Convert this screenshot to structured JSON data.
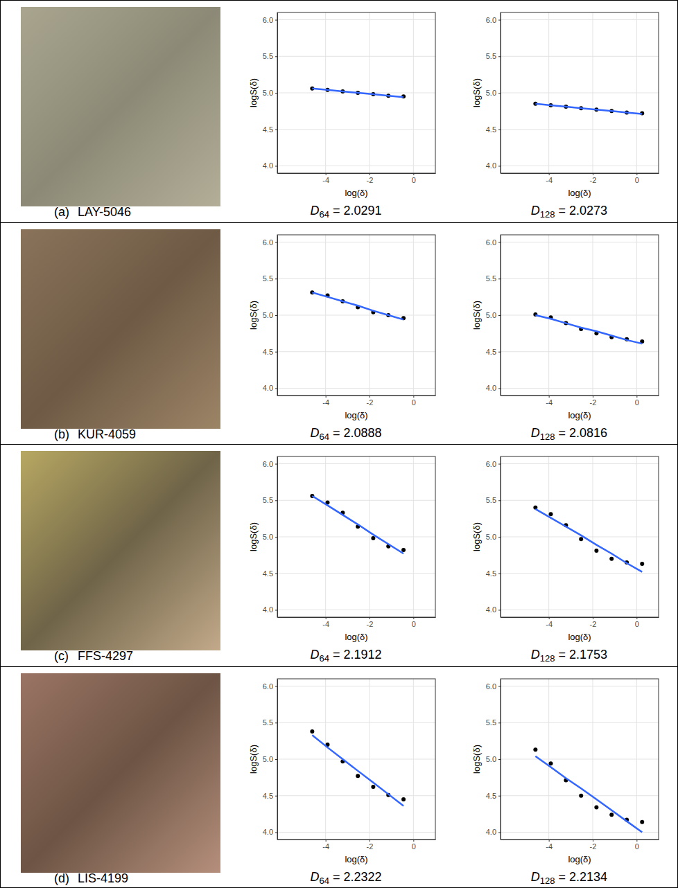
{
  "panels": [
    {
      "letter": "(a)",
      "site": "LAY-5046"
    },
    {
      "letter": "(b)",
      "site": "KUR-4059"
    },
    {
      "letter": "(c)",
      "site": "FFS-4297"
    },
    {
      "letter": "(d)",
      "site": "LIS-4199"
    }
  ],
  "chart_data": [
    {
      "type": "scatter",
      "x": [
        -4.61,
        -3.91,
        -3.22,
        -2.53,
        -1.83,
        -1.14,
        -0.45
      ],
      "series": [
        {
          "type": "scatter",
          "marker": "circle",
          "color": "#000000",
          "values": [
            5.06,
            5.04,
            5.02,
            5.0,
            4.98,
            4.96,
            4.95
          ]
        },
        {
          "type": "line",
          "line_style": "solid",
          "color": "#3366ff",
          "values": [
            5.06,
            5.04,
            5.02,
            5.0,
            4.98,
            4.96,
            4.94
          ]
        }
      ],
      "xlabel": "log(δ)",
      "ylabel": "logS(δ)",
      "xlim": [
        -6.2,
        1.0
      ],
      "ylim": [
        3.9,
        6.1
      ],
      "xticks": [
        -4,
        -2,
        0
      ],
      "yticks": [
        {
          "value": 4,
          "label": "4.0"
        },
        4.5,
        {
          "value": 5,
          "label": "5.0"
        },
        5.5,
        {
          "value": 6,
          "label": "6.0"
        }
      ],
      "grid": true,
      "annotation": {
        "symbol": "D",
        "subscript": "64",
        "text": "= 2.0291"
      }
    },
    {
      "type": "scatter",
      "x": [
        -4.61,
        -3.91,
        -3.22,
        -2.53,
        -1.83,
        -1.14,
        -0.45,
        0.25
      ],
      "series": [
        {
          "type": "scatter",
          "marker": "circle",
          "color": "#000000",
          "values": [
            4.85,
            4.83,
            4.81,
            4.79,
            4.77,
            4.75,
            4.73,
            4.72
          ]
        },
        {
          "type": "line",
          "line_style": "solid",
          "color": "#3366ff",
          "values": [
            4.85,
            4.83,
            4.81,
            4.79,
            4.77,
            4.75,
            4.73,
            4.71
          ]
        }
      ],
      "xlabel": "log(δ)",
      "ylabel": "logS(δ)",
      "xlim": [
        -6.2,
        1.0
      ],
      "ylim": [
        3.9,
        6.1
      ],
      "xticks": [
        -4,
        -2,
        0
      ],
      "yticks": [
        {
          "value": 4,
          "label": "4.0"
        },
        4.5,
        {
          "value": 5,
          "label": "5.0"
        },
        5.5,
        {
          "value": 6,
          "label": "6.0"
        }
      ],
      "grid": true,
      "annotation": {
        "symbol": "D",
        "subscript": "128",
        "text": "= 2.0273"
      }
    },
    {
      "type": "scatter",
      "x": [
        -4.61,
        -3.91,
        -3.22,
        -2.53,
        -1.83,
        -1.14,
        -0.45
      ],
      "series": [
        {
          "type": "scatter",
          "marker": "circle",
          "color": "#000000",
          "values": [
            5.31,
            5.27,
            5.19,
            5.11,
            5.04,
            5.0,
            4.96
          ]
        },
        {
          "type": "line",
          "line_style": "solid",
          "color": "#3366ff",
          "values": [
            5.31,
            5.25,
            5.19,
            5.13,
            5.06,
            5.0,
            4.94
          ]
        }
      ],
      "xlabel": "log(δ)",
      "ylabel": "logS(δ)",
      "xlim": [
        -6.2,
        1.0
      ],
      "ylim": [
        3.9,
        6.1
      ],
      "xticks": [
        -4,
        -2,
        0
      ],
      "yticks": [
        {
          "value": 4,
          "label": "4.0"
        },
        4.5,
        {
          "value": 5,
          "label": "5.0"
        },
        5.5,
        {
          "value": 6,
          "label": "6.0"
        }
      ],
      "grid": true,
      "annotation": {
        "symbol": "D",
        "subscript": "64",
        "text": "= 2.0888"
      }
    },
    {
      "type": "scatter",
      "x": [
        -4.61,
        -3.91,
        -3.22,
        -2.53,
        -1.83,
        -1.14,
        -0.45,
        0.25
      ],
      "series": [
        {
          "type": "scatter",
          "marker": "circle",
          "color": "#000000",
          "values": [
            5.01,
            4.97,
            4.89,
            4.81,
            4.75,
            4.7,
            4.67,
            4.64
          ]
        },
        {
          "type": "line",
          "line_style": "solid",
          "color": "#3366ff",
          "values": [
            5.0,
            4.95,
            4.89,
            4.83,
            4.78,
            4.72,
            4.66,
            4.61
          ]
        }
      ],
      "xlabel": "log(δ)",
      "ylabel": "logS(δ)",
      "xlim": [
        -6.2,
        1.0
      ],
      "ylim": [
        3.9,
        6.1
      ],
      "xticks": [
        -4,
        -2,
        0
      ],
      "yticks": [
        {
          "value": 4,
          "label": "4.0"
        },
        4.5,
        {
          "value": 5,
          "label": "5.0"
        },
        5.5,
        {
          "value": 6,
          "label": "6.0"
        }
      ],
      "grid": true,
      "annotation": {
        "symbol": "D",
        "subscript": "128",
        "text": "= 2.0816"
      }
    },
    {
      "type": "scatter",
      "x": [
        -4.61,
        -3.91,
        -3.22,
        -2.53,
        -1.83,
        -1.14,
        -0.45
      ],
      "series": [
        {
          "type": "scatter",
          "marker": "circle",
          "color": "#000000",
          "values": [
            5.56,
            5.47,
            5.33,
            5.14,
            4.98,
            4.87,
            4.82
          ]
        },
        {
          "type": "line",
          "line_style": "solid",
          "color": "#3366ff",
          "values": [
            5.56,
            5.43,
            5.3,
            5.17,
            5.03,
            4.9,
            4.77
          ]
        }
      ],
      "xlabel": "log(δ)",
      "ylabel": "logS(δ)",
      "xlim": [
        -6.2,
        1.0
      ],
      "ylim": [
        3.9,
        6.1
      ],
      "xticks": [
        -4,
        -2,
        0
      ],
      "yticks": [
        {
          "value": 4,
          "label": "4.0"
        },
        4.5,
        {
          "value": 5,
          "label": "5.0"
        },
        5.5,
        {
          "value": 6,
          "label": "6.0"
        }
      ],
      "grid": true,
      "annotation": {
        "symbol": "D",
        "subscript": "64",
        "text": "= 2.1912"
      }
    },
    {
      "type": "scatter",
      "x": [
        -4.61,
        -3.91,
        -3.22,
        -2.53,
        -1.83,
        -1.14,
        -0.45,
        0.25
      ],
      "series": [
        {
          "type": "scatter",
          "marker": "circle",
          "color": "#000000",
          "values": [
            5.4,
            5.31,
            5.16,
            4.97,
            4.81,
            4.7,
            4.65,
            4.63
          ]
        },
        {
          "type": "line",
          "line_style": "solid",
          "color": "#3366ff",
          "values": [
            5.38,
            5.26,
            5.14,
            5.02,
            4.89,
            4.77,
            4.64,
            4.52
          ]
        }
      ],
      "xlabel": "log(δ)",
      "ylabel": "logS(δ)",
      "xlim": [
        -6.2,
        1.0
      ],
      "ylim": [
        3.9,
        6.1
      ],
      "xticks": [
        -4,
        -2,
        0
      ],
      "yticks": [
        {
          "value": 4,
          "label": "4.0"
        },
        4.5,
        {
          "value": 5,
          "label": "5.0"
        },
        5.5,
        {
          "value": 6,
          "label": "6.0"
        }
      ],
      "grid": true,
      "annotation": {
        "symbol": "D",
        "subscript": "128",
        "text": "= 2.1753"
      }
    },
    {
      "type": "scatter",
      "x": [
        -4.61,
        -3.91,
        -3.22,
        -2.53,
        -1.83,
        -1.14,
        -0.45
      ],
      "series": [
        {
          "type": "scatter",
          "marker": "circle",
          "color": "#000000",
          "values": [
            5.38,
            5.2,
            4.97,
            4.77,
            4.62,
            4.51,
            4.45
          ]
        },
        {
          "type": "line",
          "line_style": "solid",
          "color": "#3366ff",
          "values": [
            5.33,
            5.16,
            5.0,
            4.84,
            4.68,
            4.52,
            4.36
          ]
        }
      ],
      "xlabel": "log(δ)",
      "ylabel": "logS(δ)",
      "xlim": [
        -6.2,
        1.0
      ],
      "ylim": [
        3.9,
        6.1
      ],
      "xticks": [
        -4,
        -2,
        0
      ],
      "yticks": [
        {
          "value": 4,
          "label": "4.0"
        },
        4.5,
        {
          "value": 5,
          "label": "5.0"
        },
        5.5,
        {
          "value": 6,
          "label": "6.0"
        }
      ],
      "grid": true,
      "annotation": {
        "symbol": "D",
        "subscript": "64",
        "text": "= 2.2322"
      }
    },
    {
      "type": "scatter",
      "x": [
        -4.61,
        -3.91,
        -3.22,
        -2.53,
        -1.83,
        -1.14,
        -0.45,
        0.25
      ],
      "series": [
        {
          "type": "scatter",
          "marker": "circle",
          "color": "#000000",
          "values": [
            5.13,
            4.94,
            4.71,
            4.5,
            4.34,
            4.24,
            4.17,
            4.14
          ]
        },
        {
          "type": "line",
          "line_style": "solid",
          "color": "#3366ff",
          "values": [
            5.04,
            4.89,
            4.74,
            4.6,
            4.45,
            4.3,
            4.15,
            4.0
          ]
        }
      ],
      "xlabel": "log(δ)",
      "ylabel": "logS(δ)",
      "xlim": [
        -6.2,
        1.0
      ],
      "ylim": [
        3.9,
        6.1
      ],
      "xticks": [
        -4,
        -2,
        0
      ],
      "yticks": [
        {
          "value": 4,
          "label": "4.0"
        },
        4.5,
        {
          "value": 5,
          "label": "5.0"
        },
        5.5,
        {
          "value": 6,
          "label": "6.0"
        }
      ],
      "grid": true,
      "annotation": {
        "symbol": "D",
        "subscript": "128",
        "text": "= 2.2134"
      }
    }
  ]
}
